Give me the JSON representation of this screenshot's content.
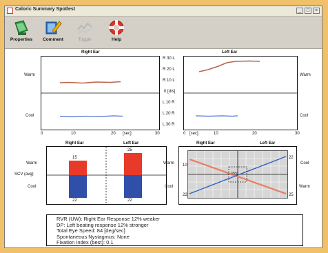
{
  "window": {
    "title": "Caloric Summary Spotlest"
  },
  "toolbar": [
    {
      "label": "Properties",
      "icon": "properties-icon",
      "enabled": true
    },
    {
      "label": "Comment",
      "icon": "comment-icon",
      "enabled": true
    },
    {
      "label": "Toggle",
      "icon": "toggle-icon",
      "enabled": false
    },
    {
      "label": "Help",
      "icon": "help-icon",
      "enabled": true
    }
  ],
  "top": {
    "right_ear_title": "Right Ear",
    "left_ear_title": "Left Ear",
    "warm_label": "Warm",
    "cool_label": "Cool",
    "center_labels": [
      "R 30 L",
      "R 20 L",
      "R 10 L",
      "0 [d/s]",
      "L 10 R",
      "L 20 R",
      "L 30 R"
    ],
    "right_x_ticks": [
      "0",
      "10",
      "20",
      "30"
    ],
    "right_x_unit": "[sec]",
    "left_x_ticks": [
      "0",
      "10",
      "20",
      "30"
    ],
    "left_x_unit": "[sec]"
  },
  "bars": {
    "right_ear_title": "Right Ear",
    "left_ear_title": "Left Ear",
    "warm_label": "Warm",
    "scv_label": "SCV (avg)",
    "cool_label": "Cool",
    "right_warm_value": "15",
    "right_cool_value": "22",
    "left_warm_value": "25",
    "left_cool_value": "22"
  },
  "butterfly": {
    "right_ear_title": "Right Ear",
    "left_ear_title": "Left Ear",
    "warm_label": "Warm",
    "cool_label": "Cool",
    "center_label": "[d/s]",
    "cool_right_label": "Cool",
    "warm_right_label": "Warm",
    "left_axis_value": "10",
    "right_top_value": "22",
    "left_bottom_value": "22",
    "right_bottom_value": "25"
  },
  "summary": {
    "lines": [
      "RVR (UW): Right Ear Response 12% weaker",
      "DP: Left beating response 12% stronger",
      "Total Eye Speed: 84 [deg/sec]",
      "Spontaneous Nystagmus: None",
      "Fixation Index (best): 0.1"
    ]
  },
  "colors": {
    "warm": "#e83a2a",
    "cool": "#2f4fa8",
    "warm_trace": "#b8644a",
    "cool_trace": "#4a6fd0"
  }
}
